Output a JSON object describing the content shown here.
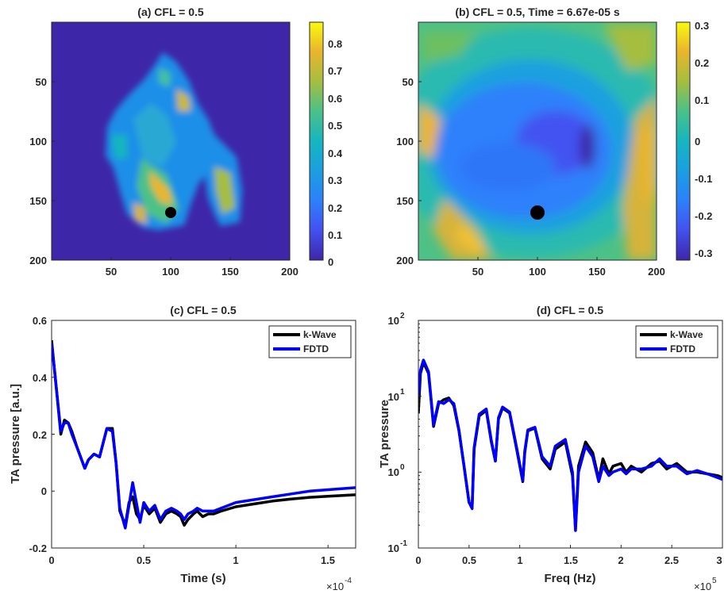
{
  "colors": {
    "parula_low": "#3e26a8",
    "parula_mid": "#17b5bf",
    "parula_high": "#f9fb0e",
    "kwave": "#000000",
    "fdtd": "#0000ff"
  },
  "panels": {
    "a": {
      "title": "(a) CFL = 0.5",
      "xticks": [
        "50",
        "100",
        "150",
        "200"
      ],
      "yticks": [
        "50",
        "100",
        "150",
        "200"
      ],
      "cbar_ticks": [
        "0.8",
        "0.7",
        "0.6",
        "0.5",
        "0.4",
        "0.3",
        "0.2",
        "0.1",
        "0"
      ]
    },
    "b": {
      "title": "(b) CFL = 0.5, Time = 6.67e-05 s",
      "xticks": [
        "50",
        "100",
        "150",
        "200"
      ],
      "yticks": [
        "50",
        "100",
        "150",
        "200"
      ],
      "cbar_ticks": [
        "0.3",
        "0.2",
        "0.1",
        "0",
        "-0.1",
        "-0.2",
        "-0.3"
      ]
    },
    "c": {
      "title": "(c) CFL = 0.5",
      "xlabel": "Time (s)",
      "ylabel": "TA pressure [a.u.]",
      "xticks": [
        "0",
        "0.5",
        "1",
        "1.5"
      ],
      "yticks": [
        "0.6",
        "0.4",
        "0.2",
        "0",
        "-0.2"
      ],
      "exponent_base": "×10",
      "exponent_power": "-4",
      "legend": [
        "k-Wave",
        "FDTD"
      ]
    },
    "d": {
      "title": "(d) CFL = 0.5",
      "xlabel": "Freq (Hz)",
      "ylabel": "TA pressure",
      "xticks": [
        "0",
        "0.5",
        "1",
        "1.5",
        "2",
        "2.5",
        "3"
      ],
      "ytick_base": "10",
      "ytick_powers": [
        "2",
        "1",
        "0",
        "-1"
      ],
      "exponent_base": "×10",
      "exponent_power": "5",
      "legend": [
        "k-Wave",
        "FDTD"
      ]
    }
  },
  "chart_data": [
    {
      "type": "heatmap",
      "title": "(a) CFL = 0.5",
      "xlim": [
        1,
        200
      ],
      "ylim": [
        1,
        200
      ],
      "y_reversed": true,
      "colorbar": {
        "range": [
          0,
          0.87
        ],
        "colormap": "parula"
      },
      "marker": {
        "x": 100,
        "y": 160,
        "color": "black"
      }
    },
    {
      "type": "heatmap",
      "title": "(b) CFL = 0.5, Time = 6.67e-05 s",
      "xlim": [
        1,
        200
      ],
      "ylim": [
        1,
        200
      ],
      "y_reversed": true,
      "colorbar": {
        "range": [
          -0.33,
          0.33
        ],
        "colormap": "parula"
      },
      "marker": {
        "x": 100,
        "y": 160,
        "color": "black"
      }
    },
    {
      "type": "line",
      "title": "(c) CFL = 0.5",
      "xlabel": "Time (s)",
      "ylabel": "TA pressure [a.u.]",
      "xlim": [
        0,
        1.65
      ],
      "ylim": [
        -0.2,
        0.6
      ],
      "x_multiplier": "1e-4",
      "legend_position": "top-right",
      "series": [
        {
          "name": "k-Wave",
          "x": [
            0,
            0.02,
            0.05,
            0.07,
            0.09,
            0.11,
            0.14,
            0.18,
            0.2,
            0.23,
            0.26,
            0.3,
            0.33,
            0.35,
            0.37,
            0.4,
            0.42,
            0.44,
            0.46,
            0.48,
            0.5,
            0.53,
            0.56,
            0.59,
            0.62,
            0.65,
            0.68,
            0.7,
            0.72,
            0.74,
            0.77,
            0.79,
            0.82,
            0.85,
            0.88,
            0.92,
            1.0,
            1.1,
            1.2,
            1.3,
            1.4,
            1.5,
            1.65
          ],
          "y": [
            0.53,
            0.4,
            0.2,
            0.25,
            0.24,
            0.21,
            0.15,
            0.08,
            0.11,
            0.13,
            0.12,
            0.22,
            0.22,
            0.1,
            -0.07,
            -0.12,
            -0.04,
            -0.02,
            -0.08,
            -0.1,
            -0.05,
            -0.08,
            -0.06,
            -0.11,
            -0.08,
            -0.07,
            -0.08,
            -0.09,
            -0.12,
            -0.1,
            -0.08,
            -0.07,
            -0.09,
            -0.08,
            -0.08,
            -0.07,
            -0.055,
            -0.045,
            -0.035,
            -0.028,
            -0.022,
            -0.018,
            -0.013
          ]
        },
        {
          "name": "FDTD",
          "x": [
            0,
            0.02,
            0.05,
            0.07,
            0.09,
            0.11,
            0.14,
            0.18,
            0.2,
            0.23,
            0.26,
            0.3,
            0.33,
            0.35,
            0.37,
            0.4,
            0.42,
            0.44,
            0.46,
            0.48,
            0.5,
            0.53,
            0.56,
            0.59,
            0.62,
            0.65,
            0.68,
            0.7,
            0.72,
            0.74,
            0.77,
            0.79,
            0.82,
            0.85,
            0.88,
            0.92,
            1.0,
            1.1,
            1.2,
            1.3,
            1.4,
            1.5,
            1.65
          ],
          "y": [
            0.52,
            0.4,
            0.21,
            0.24,
            0.24,
            0.2,
            0.15,
            0.08,
            0.11,
            0.13,
            0.12,
            0.22,
            0.21,
            0.1,
            -0.06,
            -0.13,
            -0.05,
            0.03,
            -0.04,
            -0.11,
            -0.04,
            -0.07,
            -0.05,
            -0.1,
            -0.07,
            -0.06,
            -0.07,
            -0.08,
            -0.1,
            -0.08,
            -0.07,
            -0.06,
            -0.07,
            -0.07,
            -0.07,
            -0.06,
            -0.04,
            -0.03,
            -0.02,
            -0.01,
            0.0,
            0.005,
            0.012
          ]
        }
      ]
    },
    {
      "type": "line",
      "title": "(d) CFL = 0.5",
      "xlabel": "Freq (Hz)",
      "ylabel": "TA pressure",
      "xlim": [
        0,
        3
      ],
      "ylim": [
        0.1,
        100
      ],
      "y_scale": "log",
      "x_multiplier": "1e5",
      "legend_position": "top-right",
      "series": [
        {
          "name": "k-Wave",
          "x": [
            0,
            0.02,
            0.05,
            0.1,
            0.15,
            0.2,
            0.25,
            0.3,
            0.35,
            0.4,
            0.45,
            0.5,
            0.53,
            0.55,
            0.6,
            0.67,
            0.72,
            0.76,
            0.79,
            0.83,
            0.9,
            0.97,
            1.03,
            1.05,
            1.08,
            1.15,
            1.22,
            1.3,
            1.35,
            1.45,
            1.52,
            1.55,
            1.58,
            1.65,
            1.72,
            1.78,
            1.82,
            1.88,
            1.92,
            2.0,
            2.05,
            2.1,
            2.2,
            2.3,
            2.38,
            2.45,
            2.55,
            2.65,
            2.75,
            2.85,
            2.95,
            3.0
          ],
          "y": [
            6.0,
            20.0,
            28.0,
            20.0,
            4.0,
            8.0,
            9.0,
            9.5,
            7.5,
            3.5,
            1.2,
            0.4,
            0.35,
            2.0,
            5.5,
            6.5,
            2.5,
            1.4,
            5.0,
            7.0,
            6.0,
            2.0,
            0.75,
            1.8,
            3.5,
            3.8,
            1.5,
            1.1,
            2.0,
            2.5,
            0.9,
            0.18,
            1.2,
            2.5,
            1.8,
            0.8,
            1.5,
            0.95,
            1.2,
            1.3,
            1.0,
            1.2,
            1.0,
            1.3,
            1.4,
            1.1,
            1.3,
            1.0,
            1.0,
            0.95,
            0.9,
            0.85
          ]
        },
        {
          "name": "FDTD",
          "x": [
            0,
            0.02,
            0.05,
            0.1,
            0.15,
            0.2,
            0.25,
            0.3,
            0.35,
            0.4,
            0.45,
            0.5,
            0.53,
            0.55,
            0.6,
            0.67,
            0.72,
            0.76,
            0.79,
            0.83,
            0.9,
            0.97,
            1.03,
            1.05,
            1.08,
            1.15,
            1.22,
            1.3,
            1.35,
            1.45,
            1.52,
            1.55,
            1.58,
            1.65,
            1.72,
            1.78,
            1.82,
            1.88,
            1.92,
            2.0,
            2.05,
            2.1,
            2.2,
            2.3,
            2.38,
            2.45,
            2.55,
            2.65,
            2.75,
            2.85,
            2.95,
            3.0
          ],
          "y": [
            10.0,
            22.0,
            30.0,
            21.0,
            4.2,
            8.5,
            8.0,
            9.0,
            8.0,
            3.6,
            1.2,
            0.4,
            0.33,
            2.1,
            5.8,
            6.8,
            2.6,
            1.4,
            5.2,
            7.2,
            6.2,
            2.1,
            0.78,
            1.9,
            3.6,
            3.9,
            1.6,
            1.2,
            2.2,
            2.7,
            1.0,
            0.17,
            1.0,
            2.2,
            1.6,
            0.75,
            1.2,
            0.9,
            1.0,
            1.1,
            0.95,
            1.1,
            1.1,
            1.2,
            1.5,
            1.2,
            1.2,
            0.95,
            1.05,
            0.95,
            0.85,
            0.8
          ]
        }
      ]
    }
  ]
}
